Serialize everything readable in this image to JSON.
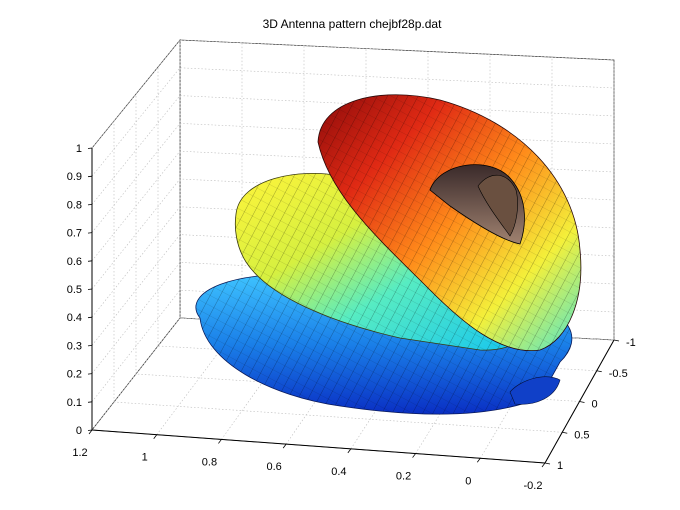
{
  "chart_data": {
    "type": "surface",
    "title": "3D Antenna pattern chejbf28p.dat",
    "xlabel": "",
    "ylabel": "",
    "zlabel": "",
    "grid": true,
    "colormap": "jet",
    "xlim": [
      -0.2,
      1.2
    ],
    "ylim": [
      -1,
      1
    ],
    "zlim": [
      0,
      1
    ],
    "x_ticks": [
      "1.2",
      "1",
      "0.8",
      "0.6",
      "0.4",
      "0.2",
      "0",
      "-0.2"
    ],
    "y_ticks": [
      "-1",
      "-0.5",
      "0",
      "0.5",
      "1"
    ],
    "z_ticks": [
      "0",
      "0.1",
      "0.2",
      "0.3",
      "0.4",
      "0.5",
      "0.6",
      "0.7",
      "0.8",
      "0.9",
      "1"
    ],
    "lobes": [
      {
        "name": "",
        "peak_z": 0.35,
        "color": "#1e7ce6"
      },
      {
        "name": "",
        "peak_z": 0.65,
        "color": "#f2e23a"
      },
      {
        "name": "",
        "peak_z": 1.0,
        "color": "#e03a1a"
      }
    ]
  }
}
